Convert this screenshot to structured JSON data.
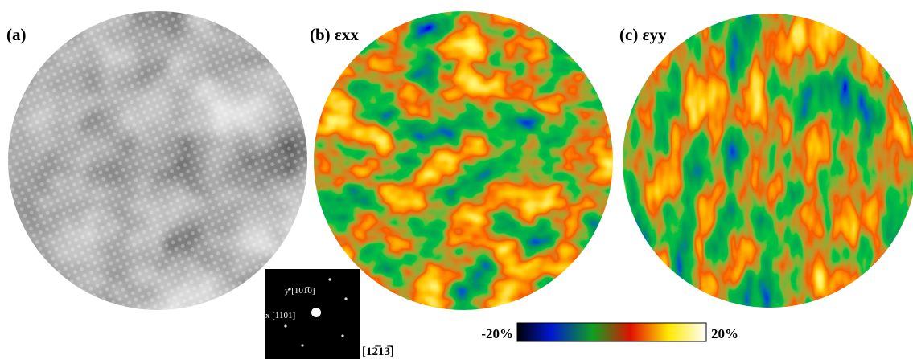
{
  "panels": [
    {
      "label": "(a)"
    },
    {
      "label": "(b) εxx"
    },
    {
      "label": "(c) εyy"
    }
  ],
  "inset": {
    "y_direction": "y [101̅0]",
    "x_direction": "x [11̅01]",
    "zone_axis": "[12̅13̅]"
  },
  "colorbar": {
    "min_label": "-20%",
    "max_label": "20%"
  }
}
